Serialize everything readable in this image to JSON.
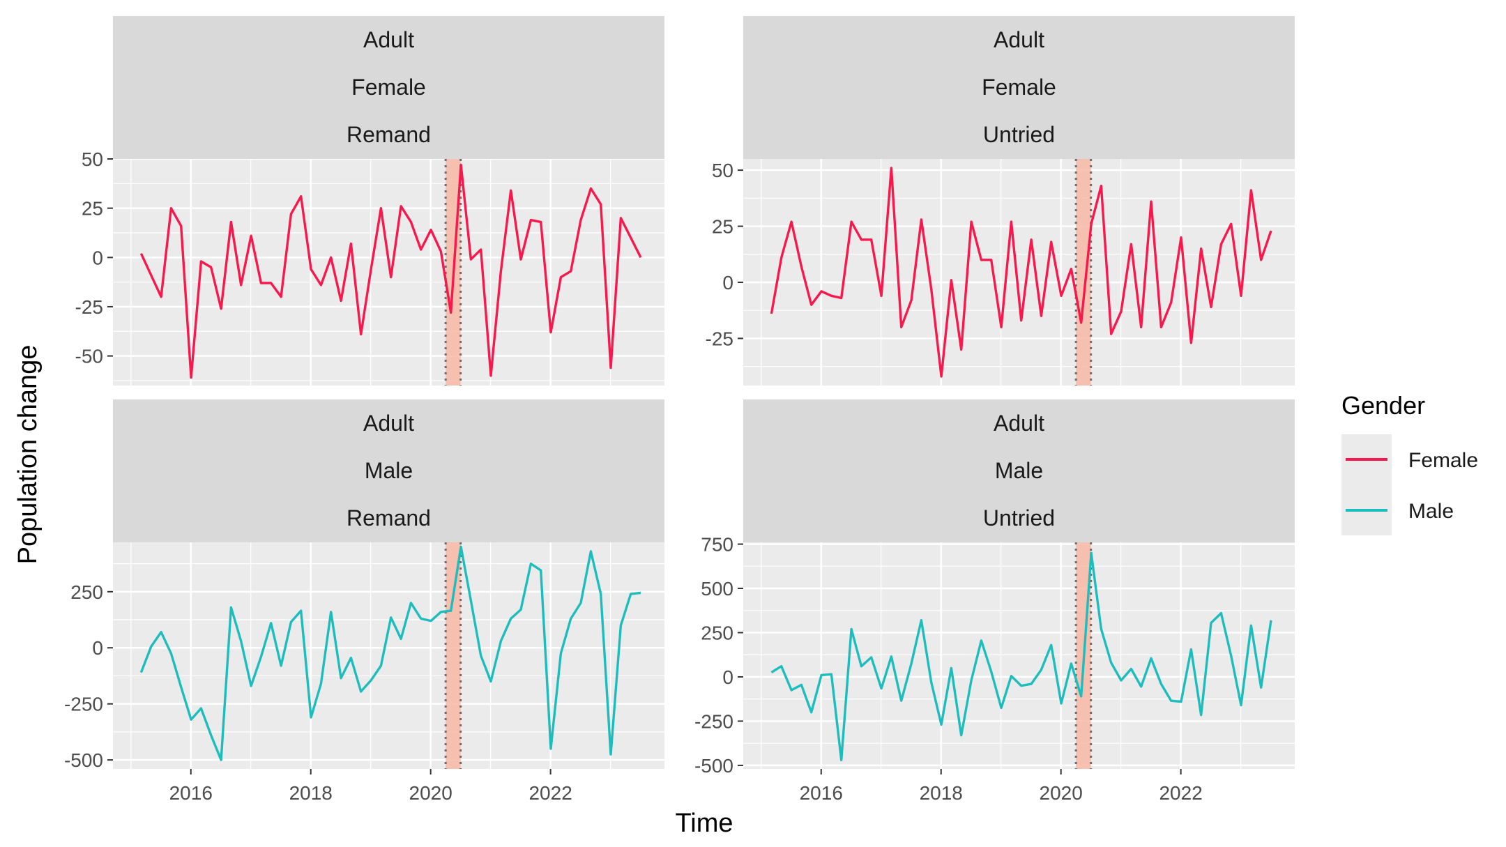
{
  "chart_data": {
    "type": "line",
    "xlabel": "Time",
    "ylabel": "Population change",
    "legend": {
      "title": "Gender",
      "position": "right",
      "entries": [
        {
          "name": "Female",
          "color": "#F8184C"
        },
        {
          "name": "Male",
          "color": "#1DBDBD"
        }
      ]
    },
    "background_color": "#EBEBEB",
    "strip_color": "#D9D9D9",
    "highlight": {
      "x_start": 2020.25,
      "x_end": 2020.5,
      "color": "#F8B9A6"
    },
    "x_ticks": [
      2016,
      2018,
      2020,
      2022
    ],
    "x_tick_labels": [
      "2016",
      "2018",
      "2020",
      "2022"
    ],
    "xlim": [
      2014.7,
      2023.9
    ],
    "panels": [
      {
        "strip": [
          "Adult",
          "Female",
          "Remand"
        ],
        "series": "Female",
        "ylim": [
          -65,
          50
        ],
        "y_ticks": [
          -50,
          -25,
          0,
          25,
          50
        ],
        "y_tick_labels": [
          "-50",
          "-25",
          "0",
          "25",
          "50"
        ],
        "x_start": 2015.17,
        "x_step": 0.1667,
        "values": [
          2,
          -9,
          -20,
          25,
          16,
          -61,
          -2,
          -5,
          -26,
          18,
          -14,
          11,
          -13,
          -13,
          -20,
          22,
          31,
          -6,
          -14,
          0,
          -22,
          7,
          -39,
          -6,
          25,
          -10,
          26,
          18,
          4,
          14,
          3,
          -28,
          47,
          -1,
          4,
          -60,
          -7,
          34,
          -1,
          19,
          18,
          -38,
          -10,
          -7,
          19,
          35,
          27,
          -56,
          20,
          10,
          0
        ]
      },
      {
        "strip": [
          "Adult",
          "Female",
          "Untried"
        ],
        "series": "Female",
        "ylim": [
          -46,
          55
        ],
        "y_ticks": [
          -25,
          0,
          25,
          50
        ],
        "y_tick_labels": [
          "-25",
          "0",
          "25",
          "50"
        ],
        "x_start": 2015.17,
        "x_step": 0.1667,
        "values": [
          -14,
          11,
          27,
          7,
          -10,
          -4,
          -6,
          -7,
          27,
          19,
          19,
          -6,
          51,
          -20,
          -8,
          28,
          -3,
          -42,
          1,
          -30,
          27,
          10,
          10,
          -20,
          27,
          -17,
          19,
          -15,
          18,
          -6,
          6,
          -18,
          26,
          43,
          -23,
          -13,
          17,
          -20,
          36,
          -20,
          -9,
          20,
          -27,
          15,
          -11,
          17,
          26,
          -6,
          41,
          10,
          23
        ]
      },
      {
        "strip": [
          "Adult",
          "Male",
          "Remand"
        ],
        "series": "Male",
        "ylim": [
          -540,
          470
        ],
        "y_ticks": [
          -500,
          -250,
          0,
          250
        ],
        "y_tick_labels": [
          "-500",
          "-250",
          "0",
          "250"
        ],
        "x_start": 2015.17,
        "x_step": 0.1667,
        "values": [
          -110,
          5,
          70,
          -25,
          -175,
          -320,
          -270,
          -390,
          -500,
          180,
          30,
          -170,
          -40,
          110,
          -80,
          115,
          165,
          -310,
          -160,
          160,
          -135,
          -45,
          -195,
          -145,
          -80,
          135,
          40,
          200,
          130,
          120,
          160,
          165,
          450,
          210,
          -35,
          -150,
          30,
          130,
          170,
          375,
          345,
          -450,
          -25,
          130,
          200,
          430,
          240,
          -475,
          100,
          240,
          245
        ]
      },
      {
        "strip": [
          "Adult",
          "Male",
          "Untried"
        ],
        "series": "Male",
        "ylim": [
          -520,
          760
        ],
        "y_ticks": [
          -500,
          -250,
          0,
          250,
          500,
          750
        ],
        "y_tick_labels": [
          "-500",
          "-250",
          "0",
          "250",
          "500",
          "750"
        ],
        "x_start": 2015.17,
        "x_step": 0.1667,
        "values": [
          25,
          60,
          -75,
          -45,
          -200,
          10,
          15,
          -470,
          270,
          60,
          110,
          -65,
          115,
          -135,
          75,
          320,
          -30,
          -270,
          50,
          -330,
          -20,
          205,
          30,
          -175,
          5,
          -50,
          -40,
          40,
          180,
          -150,
          75,
          -110,
          700,
          270,
          80,
          -20,
          45,
          -55,
          105,
          -40,
          -135,
          -140,
          155,
          -215,
          305,
          360,
          120,
          -160,
          290,
          -60,
          320
        ]
      }
    ]
  }
}
